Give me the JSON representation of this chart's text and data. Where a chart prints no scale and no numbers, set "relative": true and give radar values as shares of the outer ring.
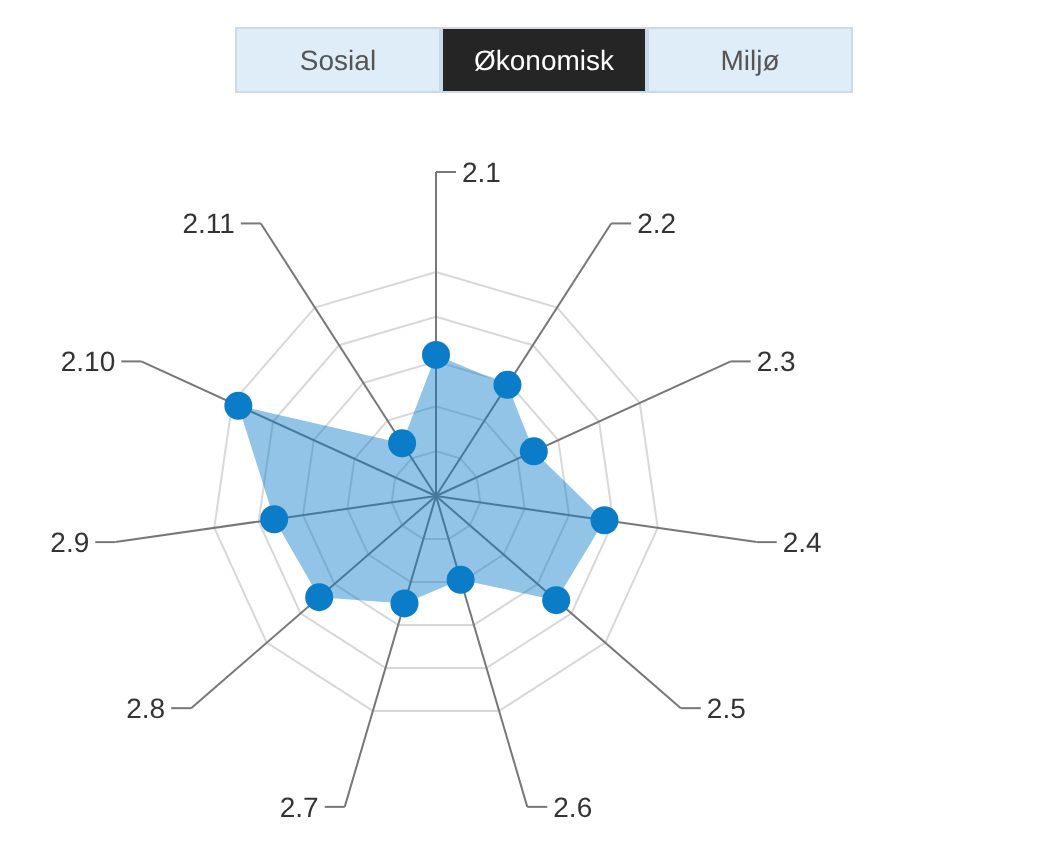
{
  "chart_data": {
    "type": "radar",
    "relative": true,
    "categories": [
      "2.1",
      "2.2",
      "2.3",
      "2.4",
      "2.5",
      "2.6",
      "2.7",
      "2.8",
      "2.9",
      "2.10",
      "2.11"
    ],
    "series": [
      {
        "color": "#0a7cc8",
        "values": [
          0.63,
          0.59,
          0.48,
          0.76,
          0.71,
          0.39,
          0.5,
          0.69,
          0.73,
          0.97,
          0.28
        ]
      }
    ],
    "marker": "circle",
    "grid": true,
    "annotations": [
      "Sosial",
      "Økonomisk",
      "Miljø"
    ]
  }
}
